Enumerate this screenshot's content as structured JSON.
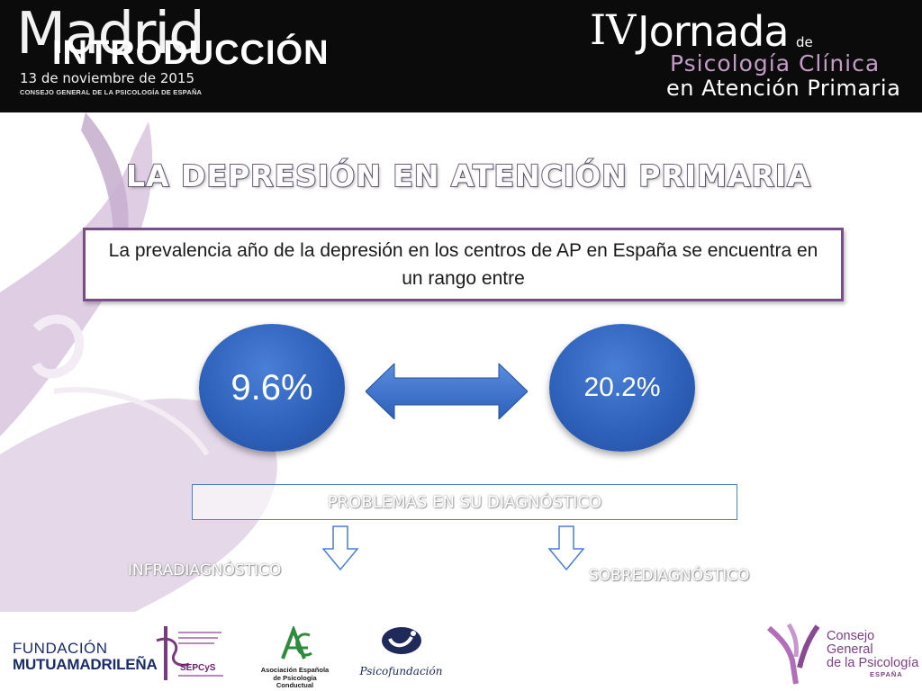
{
  "header": {
    "city": "Madrid",
    "section": "INTRODUCCIÓN",
    "date": "13 de noviembre de 2015",
    "organizer_small": "CONSEJO GENERAL DE LA PSICOLOGÍA DE ESPAÑA",
    "event": {
      "number": "IV",
      "word": "Jornada",
      "de": "de",
      "line2": "Psicología Clínica",
      "line3": "en Atención Primaria"
    }
  },
  "slide": {
    "title": "LA DEPRESIÓN EN ATENCIÓN PRIMARIA",
    "box_text": "La prevalencia año de la depresión en los centros de AP en España se encuentra en un rango entre",
    "range_low": "9.6%",
    "range_high": "20.2%",
    "problems_heading": "PROBLEMAS EN SU DIAGNÓSTICO",
    "left_outcome": "INFRADIAGNÓSTICO",
    "right_outcome": "SOBREDIAGNÓSTICO"
  },
  "footer": {
    "fundacion_line1": "FUNDACIÓN",
    "fundacion_line2": "MUTUAMADRILEÑA",
    "sepcys": "SEPCyS",
    "aepc_line1": "Asociación Española",
    "aepc_line2": "de Psicología Conductual",
    "psicofundacion": "Psicofundación",
    "consejo_line1": "Consejo General",
    "consejo_line2": "de la Psicología",
    "consejo_line3": "ESPAÑA"
  },
  "colors": {
    "header_bg": "#0b0b0b",
    "accent_purple": "#7a4c8c",
    "lilac": "#c39bc6",
    "circle_blue": "#2c5fb8",
    "arrow_blue": "#3366c4"
  }
}
